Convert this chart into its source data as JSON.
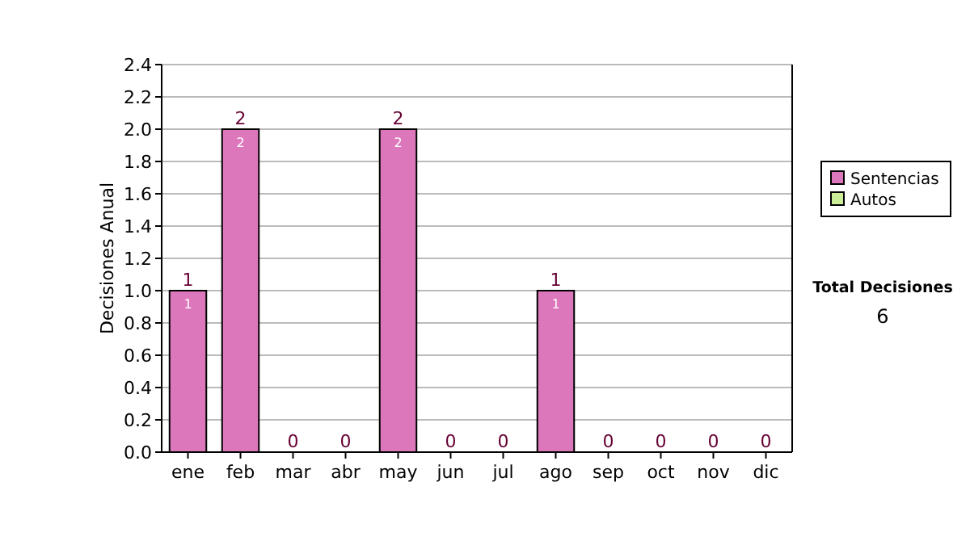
{
  "chart_data": {
    "type": "bar",
    "stacked": true,
    "ylabel": "Decisiones Anual",
    "categories": [
      "ene",
      "feb",
      "mar",
      "abr",
      "may",
      "jun",
      "jul",
      "ago",
      "sep",
      "oct",
      "nov",
      "dic"
    ],
    "series": [
      {
        "name": "Sentencias",
        "color": "#dd77bb",
        "values": [
          1,
          2,
          0,
          0,
          2,
          0,
          0,
          1,
          0,
          0,
          0,
          0
        ],
        "value_labels": [
          "1",
          "2",
          null,
          null,
          "2",
          null,
          null,
          "1",
          null,
          null,
          null,
          null
        ]
      },
      {
        "name": "Autos",
        "color": "#ccee99",
        "values": [
          0,
          0,
          0,
          0,
          0,
          0,
          0,
          0,
          0,
          0,
          0,
          0
        ]
      }
    ],
    "totals": [
      "1",
      "2",
      "0",
      "0",
      "2",
      "0",
      "0",
      "1",
      "0",
      "0",
      "0",
      "0"
    ],
    "ylim": [
      0,
      2.4
    ],
    "yticks": [
      {
        "value": 0,
        "label": "0.0"
      },
      {
        "value": 0.2,
        "label": "0.2"
      },
      {
        "value": 0.4,
        "label": "0.4"
      },
      {
        "value": 0.6,
        "label": "0.6"
      },
      {
        "value": 0.8,
        "label": "0.8"
      },
      {
        "value": 1,
        "label": "1.0"
      },
      {
        "value": 1.2,
        "label": "1.2"
      },
      {
        "value": 1.4,
        "label": "1.4"
      },
      {
        "value": 1.6,
        "label": "1.6"
      },
      {
        "value": 1.8,
        "label": "1.8"
      },
      {
        "value": 2,
        "label": "2.0"
      },
      {
        "value": 2.2,
        "label": "2.2"
      },
      {
        "value": 2.4,
        "label": "2.4"
      }
    ],
    "grid": "y",
    "legend": "right",
    "annotations": [
      "Total Decisiones",
      "6"
    ]
  }
}
